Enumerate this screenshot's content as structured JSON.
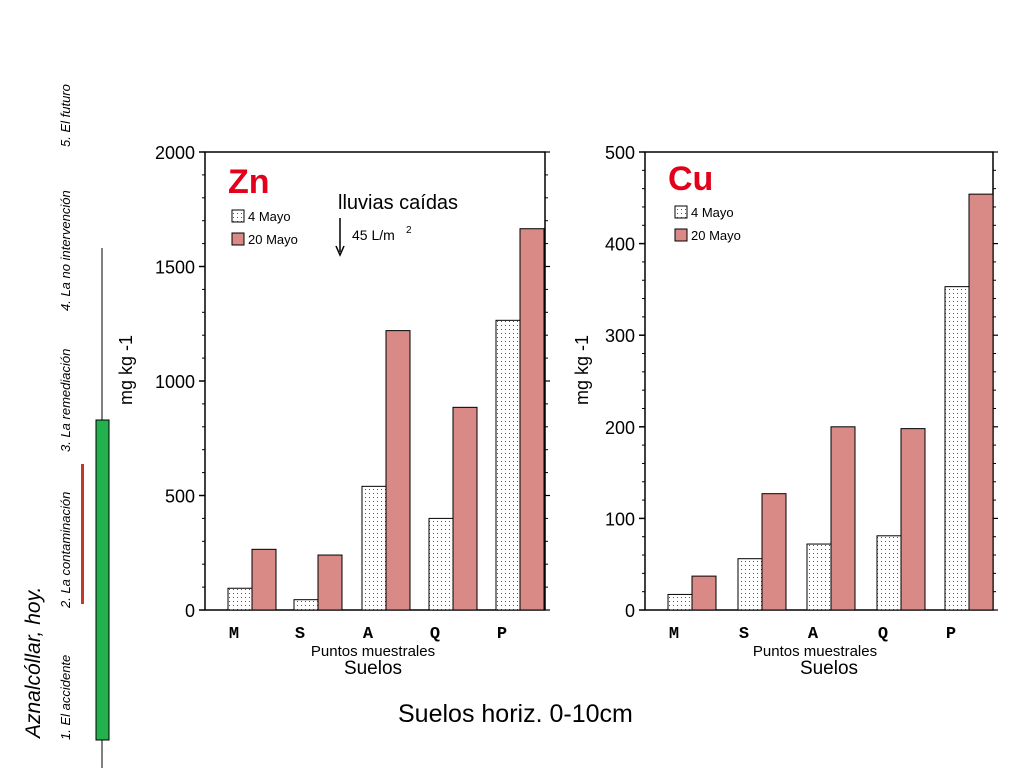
{
  "sidebar": {
    "title": "Aznalcóllar, hoy.",
    "sections": [
      "1. El accidente",
      "2. La contaminación",
      "3. La remediación",
      "4. La no intervención",
      "5. El futuro"
    ],
    "green_color": "#22b14c",
    "red_color": "#c0392b"
  },
  "footer": {
    "caption": "Suelos horiz. 0-10cm"
  },
  "colors": {
    "series1_dots": "#6a3d9a",
    "series2_fill": "#d98a86",
    "title_red": "#e2001a"
  },
  "chart_data": [
    {
      "type": "bar",
      "title": "Zn",
      "ylabel": "mg kg -1",
      "xlabel": "Suelos",
      "xlabel_secondary": "Puntos muestrales",
      "categories": [
        "M",
        "S",
        "A",
        "Q",
        "P"
      ],
      "ylim": [
        0,
        2000
      ],
      "yticks": [
        0,
        500,
        1000,
        1500,
        2000
      ],
      "series": [
        {
          "name": "4 Mayo",
          "values": [
            95,
            45,
            540,
            400,
            1265
          ]
        },
        {
          "name": "20 Mayo",
          "values": [
            265,
            240,
            1220,
            885,
            1665
          ]
        }
      ],
      "annotation": {
        "text": "lluvias caídas",
        "subtext": "45 L/m",
        "sup": "2"
      },
      "legend_position": "top-left",
      "grid": false
    },
    {
      "type": "bar",
      "title": "Cu",
      "ylabel": "mg kg -1",
      "xlabel": "Suelos",
      "xlabel_secondary": "Puntos muestrales",
      "categories": [
        "M",
        "S",
        "A",
        "Q",
        "P"
      ],
      "ylim": [
        0,
        500
      ],
      "yticks": [
        0,
        100,
        200,
        300,
        400,
        500
      ],
      "series": [
        {
          "name": "4 Mayo",
          "values": [
            17,
            56,
            72,
            81,
            353
          ]
        },
        {
          "name": "20 Mayo",
          "values": [
            37,
            127,
            200,
            198,
            454
          ]
        }
      ],
      "legend_position": "top-left",
      "grid": false
    }
  ]
}
